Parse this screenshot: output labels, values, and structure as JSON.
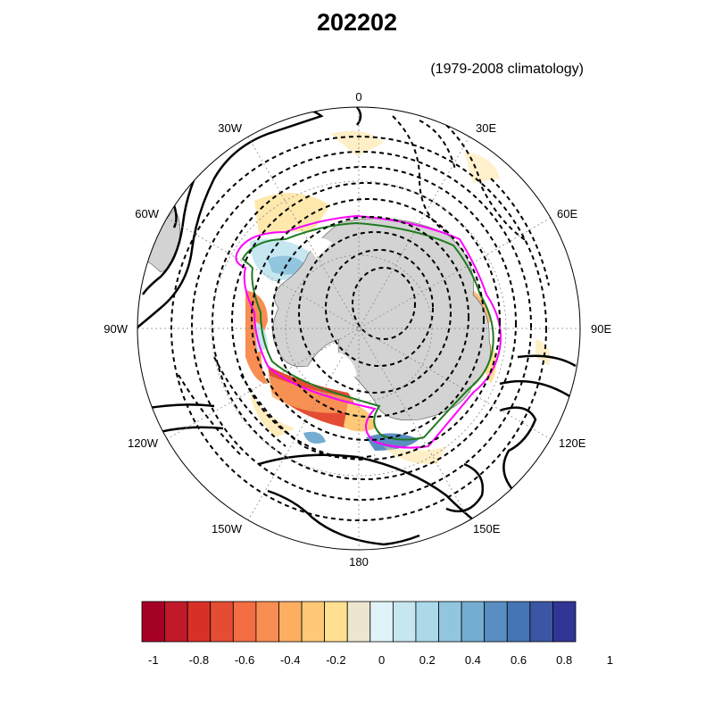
{
  "title": "202202",
  "subtitle": "(1979-2008 climatology)",
  "longitude_labels": [
    "0",
    "30E",
    "60E",
    "90E",
    "120E",
    "150E",
    "180",
    "150W",
    "120W",
    "90W",
    "60W",
    "30W"
  ],
  "colorbar": {
    "colors": [
      "#a50026",
      "#c0192a",
      "#d73027",
      "#e44c33",
      "#f46d43",
      "#f88e53",
      "#fdae61",
      "#fec877",
      "#fee090",
      "#ece6cf",
      "#e0f3f8",
      "#c6e6f0",
      "#abd9e9",
      "#92c5de",
      "#74add1",
      "#5a8ec2",
      "#4575b4",
      "#3b56a5",
      "#313695"
    ],
    "tick_labels": [
      "-1",
      "-0.8",
      "-0.6",
      "-0.4",
      "-0.2",
      "0",
      "0.2",
      "0.4",
      "0.6",
      "0.8",
      "1"
    ]
  },
  "legend_colors": {
    "land": "#d3d3d3",
    "contour_magenta": "#ff00ff",
    "contour_green": "#1f7a1f"
  }
}
